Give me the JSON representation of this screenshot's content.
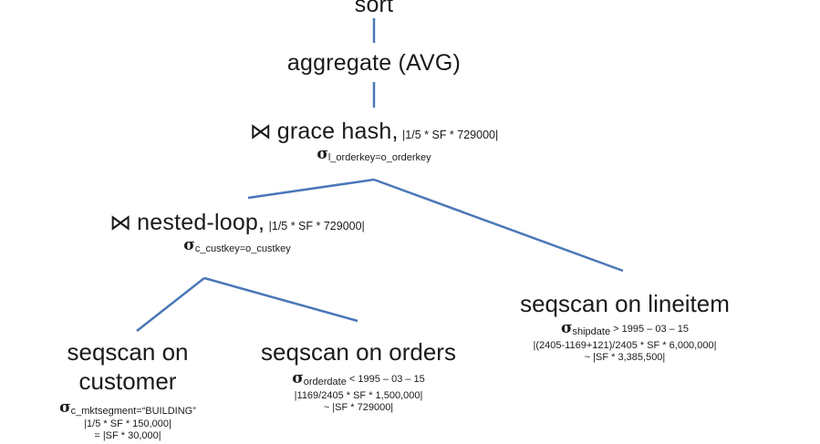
{
  "colors": {
    "edge": "#4a77b8",
    "text": "#1a1a1a",
    "background": "#ffffff"
  },
  "nodes": {
    "sort": {
      "label": "sort"
    },
    "aggregate": {
      "label": "aggregate (AVG)"
    },
    "grace_hash": {
      "join_symbol": "⋈",
      "label": "grace hash,",
      "cardinality": "|1/5 * SF * 729000|",
      "sigma": "σ",
      "predicate": "l_orderkey=o_orderkey"
    },
    "nested_loop": {
      "join_symbol": "⋈",
      "label": "nested-loop,",
      "cardinality": "|1/5 * SF * 729000|",
      "sigma": "σ",
      "predicate": "c_custkey=o_custkey"
    },
    "seqscan_lineitem": {
      "label": "seqscan on lineitem",
      "sigma": "σ",
      "predicate": "shipdate",
      "predicate_rest": " > 1995 – 03 – 15",
      "details": [
        "|(2405-1169+121)/2405 * SF * 6,000,000|",
        "~ |SF * 3,385,500|"
      ]
    },
    "seqscan_customer": {
      "label_line1": "seqscan on",
      "label_line2": "customer",
      "sigma": "σ",
      "predicate": "c_mktsegment=“BUILDING”",
      "details": [
        "|1/5 * SF * 150,000|",
        "= |SF * 30,000|"
      ]
    },
    "seqscan_orders": {
      "label": "seqscan on orders",
      "sigma": "σ",
      "predicate": "orderdate",
      "predicate_rest": " < 1995 – 03 – 15",
      "details": [
        "|1169/2405 * SF * 1,500,000|",
        "~ |SF * 729000|"
      ]
    }
  }
}
